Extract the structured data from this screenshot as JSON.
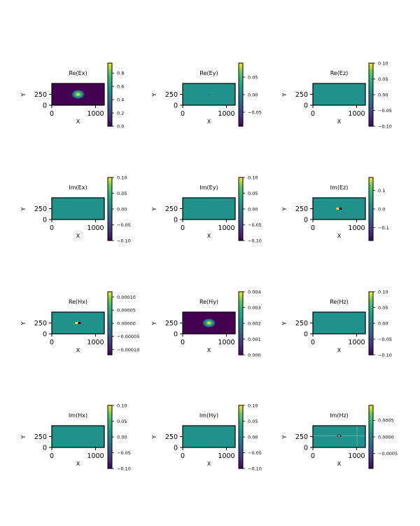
{
  "colormap": "viridis",
  "colors": {
    "dark": "#440154",
    "mid": "#21918c",
    "bright": "#fde725",
    "frame": "#000000"
  },
  "chart_data": [
    {
      "type": "heatmap",
      "title": "Re(Ex)",
      "xlabel": "X",
      "ylabel": "Y",
      "xticks": [
        "0",
        "1000"
      ],
      "yticks": [
        "250",
        "0"
      ],
      "xlim": [
        0,
        1200
      ],
      "ylim": [
        0,
        500
      ],
      "background": "dark",
      "spot": {
        "x": 600,
        "y": 250,
        "kind": "gauss"
      },
      "colorbar": {
        "ticks": [
          0.0,
          0.2,
          0.4,
          0.6,
          0.8
        ],
        "labels": [
          "0.0",
          "0.2",
          "0.4",
          "0.6",
          "0.8"
        ],
        "range": [
          0.0,
          0.95
        ]
      }
    },
    {
      "type": "heatmap",
      "title": "Re(Ey)",
      "xlabel": "X",
      "ylabel": "Y",
      "xticks": [
        "0",
        "1000"
      ],
      "yticks": [
        "250",
        "0"
      ],
      "xlim": [
        0,
        1200
      ],
      "ylim": [
        0,
        500
      ],
      "background": "mid",
      "spot": {
        "x": 600,
        "y": 250,
        "kind": "faint"
      },
      "colorbar": {
        "ticks": [
          -0.05,
          0.0,
          0.05
        ],
        "labels": [
          "−0.05",
          "0.00",
          "0.05"
        ],
        "range": [
          -0.09,
          0.09
        ]
      }
    },
    {
      "type": "heatmap",
      "title": "Re(Ez)",
      "xlabel": "X",
      "ylabel": "Y",
      "xticks": [
        "0",
        "1000"
      ],
      "yticks": [
        "250",
        "0"
      ],
      "xlim": [
        0,
        1200
      ],
      "ylim": [
        0,
        500
      ],
      "background": "mid",
      "spot": null,
      "colorbar": {
        "ticks": [
          -0.1,
          -0.05,
          0.0,
          0.05,
          0.1
        ],
        "labels": [
          "−0.10",
          "−0.05",
          "0.00",
          "0.05",
          "0.10"
        ],
        "range": [
          -0.1,
          0.1
        ]
      }
    },
    {
      "type": "heatmap",
      "title": "Im(Ex)",
      "xlabel": "X",
      "ylabel": "Y",
      "xticks": [
        "0",
        "1000"
      ],
      "yticks": [
        "250",
        "0"
      ],
      "xlim": [
        0,
        1200
      ],
      "ylim": [
        0,
        500
      ],
      "background": "mid",
      "spot": null,
      "colorbar": {
        "ticks": [
          -0.1,
          -0.05,
          0.0,
          0.05,
          0.1
        ],
        "labels": [
          "−0.10",
          "−0.05",
          "0.00",
          "0.05",
          "0.10"
        ],
        "range": [
          -0.1,
          0.1
        ]
      }
    },
    {
      "type": "heatmap",
      "title": "Im(Ey)",
      "xlabel": "X",
      "ylabel": "Y",
      "xticks": [
        "0",
        "1000"
      ],
      "yticks": [
        "250",
        "0"
      ],
      "xlim": [
        0,
        1200
      ],
      "ylim": [
        0,
        500
      ],
      "background": "mid",
      "spot": null,
      "colorbar": {
        "ticks": [
          -0.1,
          -0.05,
          0.0,
          0.05,
          0.1
        ],
        "labels": [
          "−0.10",
          "−0.05",
          "0.00",
          "0.05",
          "0.10"
        ],
        "range": [
          -0.1,
          0.1
        ]
      }
    },
    {
      "type": "heatmap",
      "title": "Im(Ez)",
      "xlabel": "X",
      "ylabel": "Y",
      "xticks": [
        "0",
        "1000"
      ],
      "yticks": [
        "250",
        "0"
      ],
      "xlim": [
        0,
        1200
      ],
      "ylim": [
        0,
        500
      ],
      "background": "mid",
      "spot": {
        "x": 600,
        "y": 250,
        "kind": "dipole"
      },
      "colorbar": {
        "ticks": [
          -0.1,
          0.0,
          0.1
        ],
        "labels": [
          "−0.1",
          "0.0",
          "0.1"
        ],
        "range": [
          -0.17,
          0.17
        ]
      }
    },
    {
      "type": "heatmap",
      "title": "Re(Hx)",
      "xlabel": "X",
      "ylabel": "Y",
      "xticks": [
        "0",
        "1000"
      ],
      "yticks": [
        "250",
        "0"
      ],
      "xlim": [
        0,
        1200
      ],
      "ylim": [
        0,
        500
      ],
      "background": "mid",
      "spot": {
        "x": 600,
        "y": 250,
        "kind": "dipole"
      },
      "colorbar": {
        "ticks": [
          -0.0001,
          -5e-05,
          0.0,
          5e-05,
          0.0001
        ],
        "labels": [
          "−0.00010",
          "−0.00005",
          "0.00000",
          "0.00005",
          "0.00010"
        ],
        "range": [
          -0.00012,
          0.00012
        ]
      }
    },
    {
      "type": "heatmap",
      "title": "Re(Hy)",
      "xlabel": "X",
      "ylabel": "Y",
      "xticks": [
        "0",
        "1000"
      ],
      "yticks": [
        "250",
        "0"
      ],
      "xlim": [
        0,
        1200
      ],
      "ylim": [
        0,
        500
      ],
      "background": "dark",
      "spot": {
        "x": 600,
        "y": 250,
        "kind": "gauss"
      },
      "colorbar": {
        "ticks": [
          0.0,
          0.001,
          0.002,
          0.003,
          0.004
        ],
        "labels": [
          "0.000",
          "0.001",
          "0.002",
          "0.003",
          "0.004"
        ],
        "range": [
          0.0,
          0.004
        ]
      }
    },
    {
      "type": "heatmap",
      "title": "Re(Hz)",
      "xlabel": "X",
      "ylabel": "Y",
      "xticks": [
        "0",
        "1000"
      ],
      "yticks": [
        "250",
        "0"
      ],
      "xlim": [
        0,
        1200
      ],
      "ylim": [
        0,
        500
      ],
      "background": "mid",
      "spot": null,
      "colorbar": {
        "ticks": [
          -0.1,
          -0.05,
          0.0,
          0.05,
          0.1
        ],
        "labels": [
          "−0.10",
          "−0.05",
          "0.00",
          "0.05",
          "0.10"
        ],
        "range": [
          -0.1,
          0.1
        ]
      }
    },
    {
      "type": "heatmap",
      "title": "Im(Hx)",
      "xlabel": "X",
      "ylabel": "Y",
      "xticks": [
        "0",
        "1000"
      ],
      "yticks": [
        "250",
        "0"
      ],
      "xlim": [
        0,
        1200
      ],
      "ylim": [
        0,
        500
      ],
      "background": "mid",
      "spot": null,
      "colorbar": {
        "ticks": [
          -0.1,
          -0.05,
          0.0,
          0.05,
          0.1
        ],
        "labels": [
          "−0.10",
          "−0.05",
          "0.00",
          "0.05",
          "0.10"
        ],
        "range": [
          -0.1,
          0.1
        ]
      }
    },
    {
      "type": "heatmap",
      "title": "Im(Hy)",
      "xlabel": "X",
      "ylabel": "Y",
      "xticks": [
        "0",
        "1000"
      ],
      "yticks": [
        "250",
        "0"
      ],
      "xlim": [
        0,
        1200
      ],
      "ylim": [
        0,
        500
      ],
      "background": "mid",
      "spot": null,
      "colorbar": {
        "ticks": [
          -0.1,
          -0.05,
          0.0,
          0.05,
          0.1
        ],
        "labels": [
          "−0.10",
          "−0.05",
          "0.00",
          "0.05",
          "0.10"
        ],
        "range": [
          -0.1,
          0.1
        ]
      }
    },
    {
      "type": "heatmap",
      "title": "Im(Hz)",
      "xlabel": "X",
      "ylabel": "Y",
      "xticks": [
        "0",
        "1000"
      ],
      "yticks": [
        "250",
        "0"
      ],
      "xlim": [
        0,
        1200
      ],
      "ylim": [
        0,
        500
      ],
      "background": "mid",
      "spot": {
        "x": 600,
        "y": 250,
        "kind": "line"
      },
      "colorbar": {
        "ticks": [
          -0.0005,
          0.0,
          0.0005
        ],
        "labels": [
          "−0.0005",
          "0.0000",
          "0.0005"
        ],
        "range": [
          -0.00095,
          0.00095
        ]
      }
    }
  ]
}
